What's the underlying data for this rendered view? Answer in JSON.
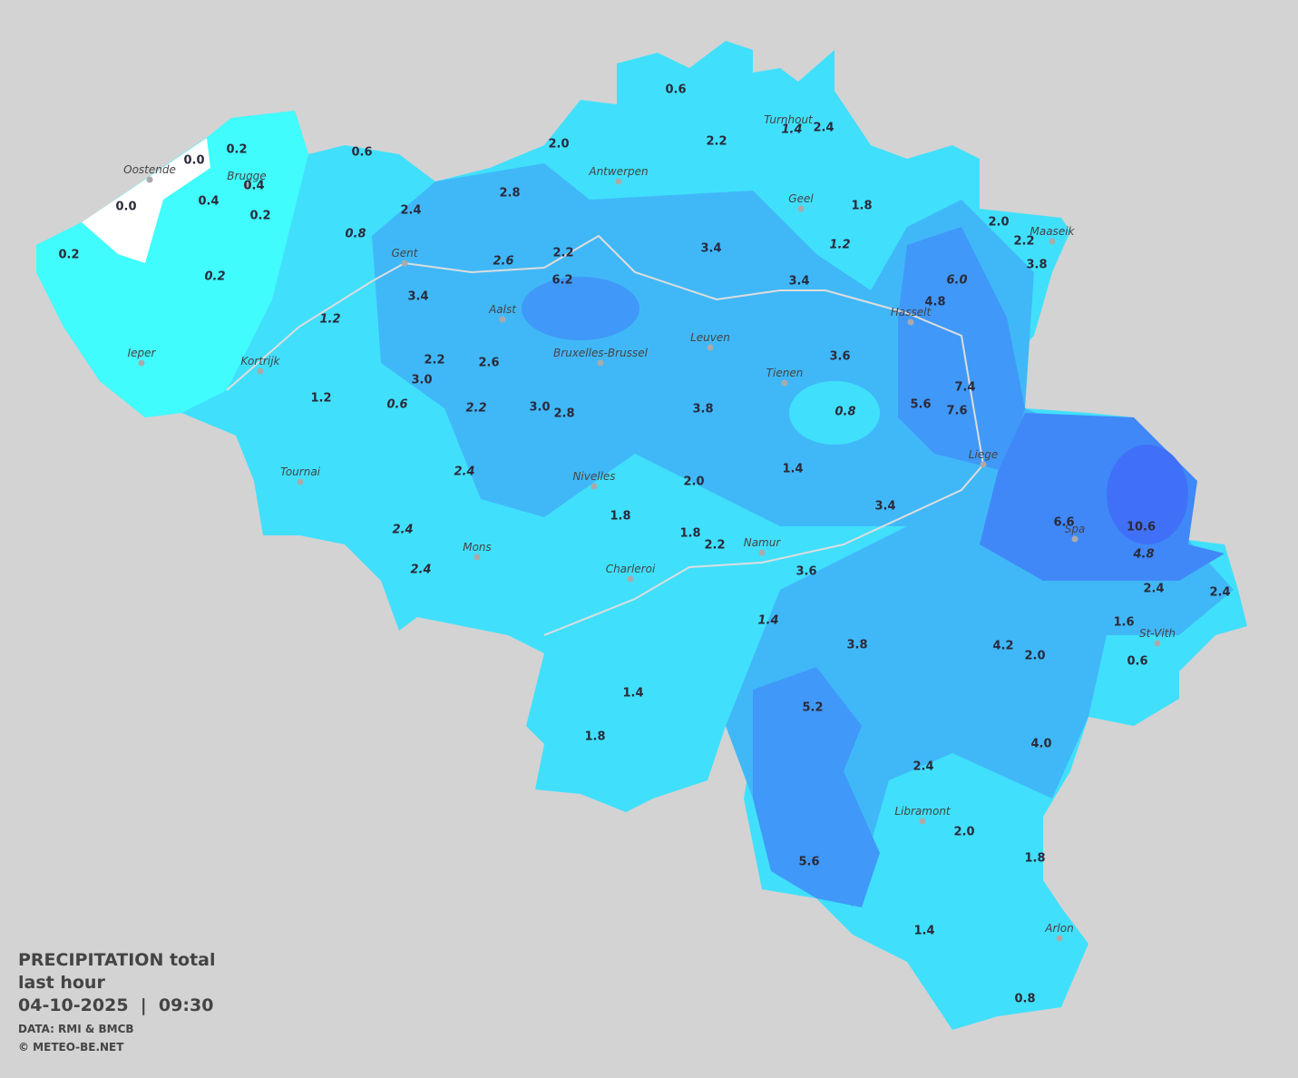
{
  "title": {
    "line1": "PRECIPITATION total",
    "line2": "last hour",
    "line3": "04-10-2025  |  09:30"
  },
  "credits": [
    "DATA: RMI & BMCB",
    "© METEO-BE.NET"
  ],
  "cities": [
    "Oostende",
    "Brugge",
    "Antwerpen",
    "Turnhout",
    "Geel",
    "Maaseik",
    "Gent",
    "Aalst",
    "Hasselt",
    "Leuven",
    "Bruxelles-Brussel",
    "Ieper",
    "Kortrijk",
    "Tienen",
    "Liege",
    "Tournai",
    "Nivelles",
    "Spa",
    "Namur",
    "Mons",
    "Charleroi",
    "St-Vith",
    "Libramont",
    "Arlon"
  ],
  "readings": [
    "0.6",
    "2.2",
    "1.4",
    "2.4",
    "2.0",
    "0.2",
    "0.0",
    "0.6",
    "0.4",
    "0.4",
    "0.0",
    "0.2",
    "2.8",
    "2.4",
    "0.8",
    "1.8",
    "2.0",
    "2.2",
    "3.8",
    "3.4",
    "1.2",
    "0.2",
    "2.2",
    "2.6",
    "0.2",
    "6.2",
    "3.4",
    "6.0",
    "4.8",
    "3.4",
    "1.2",
    "2.2",
    "2.6",
    "3.6",
    "3.0",
    "7.4",
    "1.2",
    "0.6",
    "2.2",
    "3.0",
    "2.8",
    "3.8",
    "0.8",
    "5.6",
    "7.6",
    "2.4",
    "1.4",
    "2.0",
    "1.8",
    "3.4",
    "6.6",
    "10.6",
    "2.4",
    "1.8",
    "2.2",
    "4.8",
    "2.4",
    "3.6",
    "2.4",
    "2.4",
    "1.4",
    "1.6",
    "4.2",
    "2.0",
    "3.8",
    "0.6",
    "1.4",
    "5.2",
    "1.8",
    "4.0",
    "2.4",
    "2.0",
    "1.8",
    "5.6",
    "1.4",
    "0.8"
  ]
}
